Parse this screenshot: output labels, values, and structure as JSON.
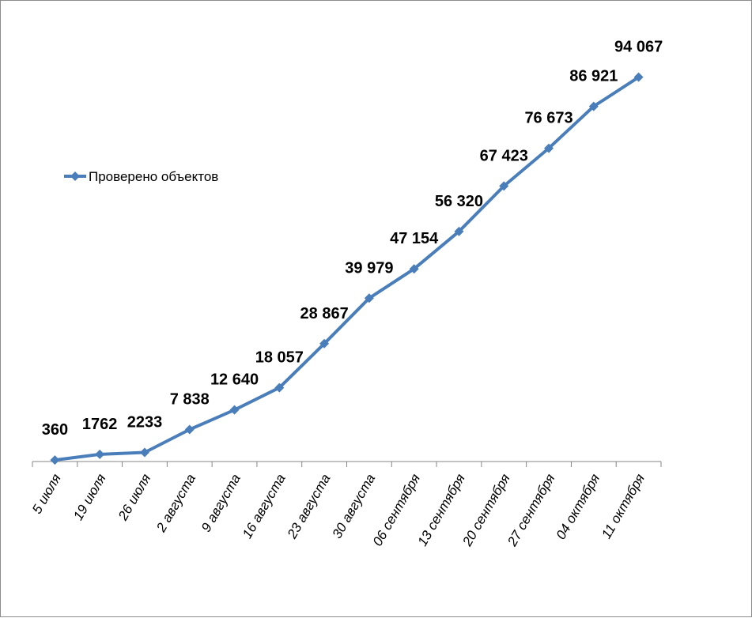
{
  "chart_data": {
    "type": "line",
    "title": "",
    "xlabel": "",
    "ylabel": "",
    "legend_position": "left",
    "grid": false,
    "ylim": [
      0,
      100000
    ],
    "categories": [
      "5 июля",
      "19 июля",
      "26 июля",
      "2 августа",
      "9 августа",
      "16 августа",
      "23 августа",
      "30 августа",
      "06 сентября",
      "13 сентября",
      "20 сентября",
      "27 сентября",
      "04 октября",
      "11 октября"
    ],
    "series": [
      {
        "name": "Проверено объектов",
        "color": "#4a7ebb",
        "values": [
          360,
          1762,
          2233,
          7838,
          12640,
          18057,
          28867,
          39979,
          47154,
          56320,
          67423,
          76673,
          86921,
          94067
        ],
        "labels": [
          "360",
          "1762",
          "2233",
          "7 838",
          "12 640",
          "18 057",
          "28 867",
          "39 979",
          "47 154",
          "56 320",
          "67 423",
          "76 673",
          "86 921",
          "94 067"
        ]
      }
    ]
  }
}
